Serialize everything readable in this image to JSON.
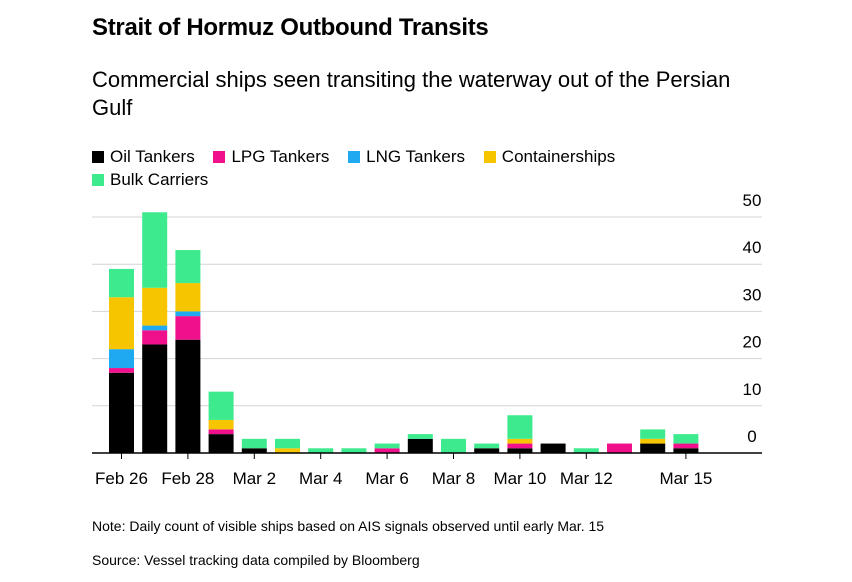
{
  "title": "Strait of Hormuz Outbound Transits",
  "subtitle": "Commercial ships seen transiting the waterway out of the Persian Gulf",
  "note": "Note: Daily count of visible ships based on AIS signals observed until early Mar. 15",
  "source": "Source: Vessel tracking data compiled by Bloomberg",
  "chart_data": {
    "type": "bar",
    "stacked": true,
    "categories": [
      "Feb 26",
      "Feb 27",
      "Feb 28",
      "Mar 1",
      "Mar 2",
      "Mar 3",
      "Mar 4",
      "Mar 5",
      "Mar 6",
      "Mar 7",
      "Mar 8",
      "Mar 9",
      "Mar 10",
      "Mar 11",
      "Mar 12",
      "Mar 13",
      "Mar 14",
      "Mar 15"
    ],
    "x_tick_labels": [
      "Feb 26",
      "",
      "Feb 28",
      "",
      "Mar 2",
      "",
      "Mar 4",
      "",
      "Mar 6",
      "",
      "Mar 8",
      "",
      "Mar 10",
      "",
      "Mar 12",
      "",
      "",
      "Mar 15"
    ],
    "series": [
      {
        "name": "Oil Tankers",
        "color": "#000000",
        "values": [
          17,
          23,
          24,
          4,
          1,
          0,
          0,
          0,
          0,
          3,
          0,
          1,
          1,
          2,
          0,
          0,
          2,
          1
        ]
      },
      {
        "name": "LPG Tankers",
        "color": "#f0108c",
        "values": [
          1,
          3,
          5,
          1,
          0,
          0,
          0,
          0,
          1,
          0,
          0,
          0,
          1,
          0,
          0,
          2,
          0,
          1
        ]
      },
      {
        "name": "LNG Tankers",
        "color": "#1fa9f0",
        "values": [
          4,
          1,
          1,
          0,
          0,
          0,
          0,
          0,
          0,
          0,
          0,
          0,
          0,
          0,
          0,
          0,
          0,
          0
        ]
      },
      {
        "name": "Containerships",
        "color": "#f7c500",
        "values": [
          11,
          8,
          6,
          2,
          0,
          1,
          0,
          0,
          0,
          0,
          0,
          0,
          1,
          0,
          0,
          0,
          1,
          0
        ]
      },
      {
        "name": "Bulk Carriers",
        "color": "#3deb8e",
        "values": [
          6,
          16,
          7,
          6,
          2,
          2,
          1,
          1,
          1,
          1,
          3,
          1,
          5,
          0,
          1,
          0,
          2,
          2
        ]
      }
    ],
    "ylim": [
      0,
      50
    ],
    "yticks": [
      0,
      10,
      20,
      30,
      40,
      50
    ],
    "grid": true,
    "legend_position": "top",
    "y_axis_side": "right"
  }
}
